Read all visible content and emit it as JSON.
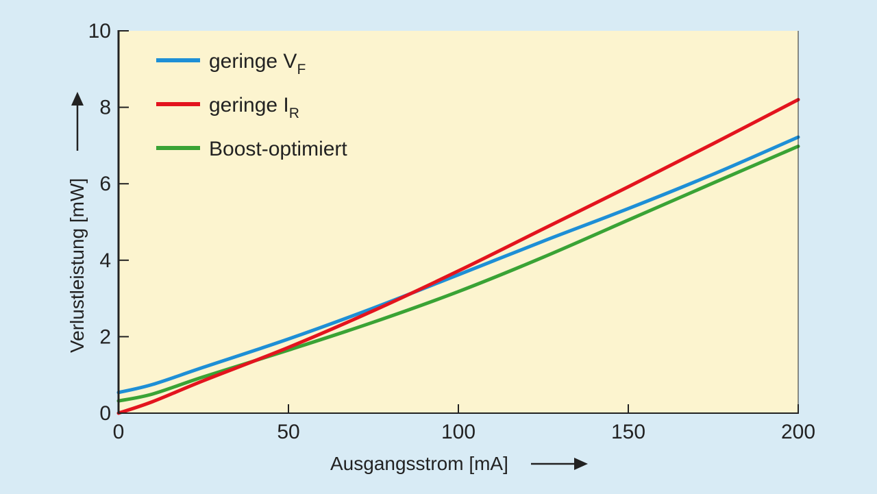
{
  "chart_data": {
    "type": "line",
    "title": "",
    "xlabel": "Ausgangsstrom [mA]",
    "ylabel": "Verlustleistung [mW]",
    "xlim": [
      0,
      200
    ],
    "ylim": [
      0,
      10
    ],
    "xticks": [
      "0",
      "50",
      "100",
      "150",
      "200"
    ],
    "yticks": [
      "0",
      "2",
      "4",
      "6",
      "8",
      "10"
    ],
    "grid": false,
    "legend_position": "top-left",
    "x": [
      0,
      10,
      25,
      50,
      75,
      100,
      125,
      150,
      175,
      200
    ],
    "series": [
      {
        "name": "geringe V",
        "subscript": "F",
        "color": "#1e8fd6",
        "values": [
          0.54,
          0.75,
          1.2,
          1.94,
          2.75,
          3.62,
          4.5,
          5.35,
          6.25,
          7.22
        ]
      },
      {
        "name": "geringe I",
        "subscript": "R",
        "color": "#e3141e",
        "values": [
          0.0,
          0.3,
          0.85,
          1.72,
          2.68,
          3.72,
          4.82,
          5.92,
          7.05,
          8.2
        ]
      },
      {
        "name": "Boost-optimiert",
        "subscript": "",
        "color": "#3aa335",
        "values": [
          0.32,
          0.5,
          0.95,
          1.65,
          2.38,
          3.18,
          4.08,
          5.05,
          6.02,
          6.98
        ]
      }
    ],
    "colors": {
      "background": "#d8ebf5",
      "plot_background": "#fcf4cf"
    }
  }
}
